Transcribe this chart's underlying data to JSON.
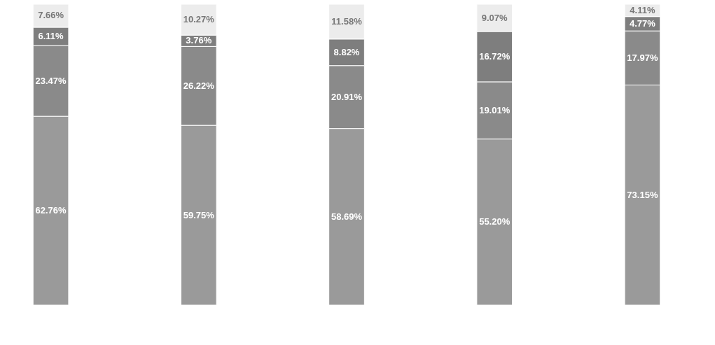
{
  "chart_data": {
    "type": "bar",
    "stacked": true,
    "categories": [
      null,
      null,
      null,
      null,
      null
    ],
    "series": [
      {
        "color": "#9a9a9a",
        "values": [
          62.76,
          59.75,
          58.69,
          55.2,
          73.15
        ],
        "value_labels": [
          "62.76%",
          "59.75%",
          "58.69%",
          "55.20%",
          "73.15%"
        ]
      },
      {
        "color": "#8a8a8a",
        "values": [
          23.47,
          26.22,
          20.91,
          19.01,
          17.97
        ],
        "value_labels": [
          "23.47%",
          "26.22%",
          "20.91%",
          "19.01%",
          "17.97%"
        ]
      },
      {
        "color": "#7e7e7e",
        "values": [
          6.11,
          3.76,
          8.82,
          16.72,
          4.77
        ],
        "value_labels": [
          "6.11%",
          "3.76%",
          "8.82%",
          "16.72%",
          "4.77%"
        ]
      },
      {
        "color": "#ececec",
        "values": [
          7.66,
          10.27,
          11.58,
          9.07,
          4.11
        ],
        "value_labels": [
          "7.66%",
          "10.27%",
          "11.58%",
          "9.07%",
          "4.11%"
        ]
      }
    ]
  }
}
